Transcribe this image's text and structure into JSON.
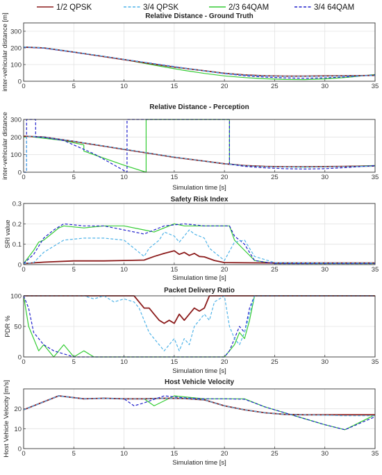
{
  "legend": {
    "items": [
      {
        "label": "1/2 QPSK",
        "color": "#8B1A1A",
        "dash": "solid"
      },
      {
        "label": "3/4 QPSK",
        "color": "#4FB3E8",
        "dash": "dashed"
      },
      {
        "label": "2/3 64QAM",
        "color": "#33CC33",
        "dash": "solid"
      },
      {
        "label": "3/4 64QAM",
        "color": "#1F1FCC",
        "dash": "dashed"
      }
    ]
  },
  "chart_data": [
    {
      "type": "line",
      "title": "Relative Distance - Ground Truth",
      "xlabel": "",
      "ylabel": "inter-vehicular distance [m]",
      "xlim": [
        0,
        35
      ],
      "ylim": [
        0,
        350
      ],
      "xticks": [
        "0",
        "5",
        "10",
        "15",
        "20",
        "25",
        "30",
        "35"
      ],
      "yticks": [
        "0",
        "100",
        "200",
        "300"
      ],
      "grid": true,
      "series": [
        {
          "name": "1/2 QPSK",
          "x": [
            0,
            2,
            5,
            8,
            10,
            13,
            15,
            18,
            20,
            22,
            24,
            26,
            28,
            30,
            32,
            35
          ],
          "y": [
            205,
            200,
            175,
            148,
            130,
            103,
            85,
            63,
            48,
            38,
            33,
            31,
            31,
            32,
            33,
            35
          ]
        },
        {
          "name": "3/4 QPSK",
          "x": [
            0,
            2,
            5,
            8,
            10,
            13,
            15,
            18,
            20,
            22,
            24,
            26,
            28,
            30,
            32,
            35
          ],
          "y": [
            206,
            201,
            176,
            149,
            131,
            104,
            86,
            63,
            48,
            37,
            32,
            30,
            30,
            31,
            32,
            34
          ]
        },
        {
          "name": "2/3 64QAM",
          "x": [
            0,
            2,
            5,
            8,
            10,
            12,
            14,
            16,
            18,
            20,
            22,
            24,
            26,
            28,
            30,
            32,
            35
          ],
          "y": [
            205,
            200,
            175,
            148,
            130,
            108,
            86,
            65,
            47,
            32,
            22,
            15,
            11,
            10,
            14,
            22,
            40
          ]
        },
        {
          "name": "3/4 64QAM",
          "x": [
            0,
            2,
            5,
            8,
            10,
            13,
            15,
            18,
            20,
            22,
            24,
            26,
            28,
            30,
            32,
            35
          ],
          "y": [
            204,
            199,
            174,
            149,
            131,
            106,
            88,
            62,
            46,
            33,
            25,
            20,
            18,
            20,
            26,
            38
          ]
        }
      ]
    },
    {
      "type": "line",
      "title": "Relative Distance - Perception",
      "xlabel": "Simulation time [s]",
      "ylabel": "inter-vehicular distance",
      "xlim": [
        0,
        35
      ],
      "ylim": [
        0,
        300
      ],
      "xticks": [
        "0",
        "5",
        "10",
        "15",
        "20",
        "25",
        "30",
        "35"
      ],
      "yticks": [
        "0",
        "100",
        "200",
        "300"
      ],
      "grid": true,
      "series": [
        {
          "name": "1/2 QPSK",
          "x": [
            0,
            2,
            5,
            8,
            10,
            13,
            15,
            18,
            20,
            22,
            24,
            26,
            28,
            30,
            32,
            35
          ],
          "y": [
            205,
            200,
            175,
            148,
            130,
            103,
            85,
            63,
            48,
            38,
            33,
            31,
            31,
            32,
            33,
            35
          ]
        },
        {
          "name": "3/4 QPSK",
          "x": [
            0,
            0.3,
            0.3,
            2,
            5,
            8,
            10,
            13,
            15,
            18,
            20,
            22,
            24,
            26,
            28,
            30,
            32,
            35
          ],
          "y": [
            0,
            0,
            205,
            200,
            176,
            149,
            131,
            104,
            86,
            63,
            48,
            37,
            32,
            30,
            30,
            31,
            32,
            34
          ]
        },
        {
          "name": "2/3 64QAM",
          "x": [
            0,
            0.3,
            0.3,
            4,
            6,
            6,
            10,
            12.2,
            12.2,
            20.5,
            20.5,
            22,
            24,
            26,
            28,
            30,
            32,
            35
          ],
          "y": [
            200,
            200,
            205,
            180,
            155,
            120,
            40,
            0,
            300,
            300,
            47,
            38,
            33,
            30,
            29,
            31,
            33,
            38
          ]
        },
        {
          "name": "3/4 64QAM",
          "x": [
            0,
            0.3,
            0.3,
            1.2,
            1.2,
            2,
            4,
            7,
            10.3,
            10.3,
            20.5,
            20.5,
            22,
            24,
            26,
            28,
            30,
            32,
            35
          ],
          "y": [
            0,
            0,
            300,
            300,
            200,
            198,
            180,
            105,
            0,
            300,
            300,
            46,
            33,
            25,
            20,
            18,
            20,
            26,
            38
          ]
        }
      ]
    },
    {
      "type": "line",
      "title": "Safety Risk Index",
      "xlabel": "Simulation time [s]",
      "ylabel": "SRI value",
      "xlim": [
        0,
        35
      ],
      "ylim": [
        0,
        0.3
      ],
      "xticks": [
        "0",
        "5",
        "10",
        "15",
        "20",
        "25",
        "30",
        "35"
      ],
      "yticks": [
        "0",
        "0.1",
        "0.2",
        "0.3"
      ],
      "grid": true,
      "series": [
        {
          "name": "1/2 QPSK",
          "x": [
            0,
            2,
            5,
            8,
            10,
            12,
            13,
            14,
            15,
            15.5,
            16,
            16.5,
            17,
            17.5,
            18,
            19,
            20,
            25,
            35
          ],
          "y": [
            0.005,
            0.012,
            0.018,
            0.018,
            0.02,
            0.022,
            0.04,
            0.055,
            0.068,
            0.05,
            0.06,
            0.045,
            0.055,
            0.04,
            0.038,
            0.02,
            0.01,
            0.008,
            0.008
          ]
        },
        {
          "name": "3/4 QPSK",
          "x": [
            0,
            1,
            2,
            4,
            6,
            8,
            10,
            11,
            12,
            12.5,
            13,
            13.5,
            14,
            15,
            15.5,
            16,
            16.5,
            17,
            18,
            18.5,
            19,
            20,
            21,
            22,
            23,
            25,
            30,
            35
          ],
          "y": [
            0.005,
            0.01,
            0.06,
            0.12,
            0.13,
            0.13,
            0.12,
            0.08,
            0.04,
            0.08,
            0.1,
            0.12,
            0.16,
            0.14,
            0.11,
            0.14,
            0.17,
            0.15,
            0.13,
            0.08,
            0.06,
            0.02,
            0.11,
            0.12,
            0.04,
            0.01,
            0.008,
            0.008
          ]
        },
        {
          "name": "2/3 64QAM",
          "x": [
            0,
            1,
            1.5,
            2,
            3,
            3.5,
            4,
            6,
            8,
            10,
            12,
            13,
            15,
            16,
            18,
            20,
            20.5,
            21,
            22,
            23,
            25,
            35
          ],
          "y": [
            0.005,
            0.07,
            0.11,
            0.12,
            0.16,
            0.18,
            0.19,
            0.18,
            0.19,
            0.19,
            0.17,
            0.16,
            0.2,
            0.19,
            0.19,
            0.19,
            0.19,
            0.12,
            0.07,
            0.02,
            0.005,
            0.005
          ]
        },
        {
          "name": "3/4 64QAM",
          "x": [
            0,
            1,
            2,
            3,
            4,
            6,
            8,
            10,
            12,
            14,
            16,
            18,
            20,
            20.5,
            21,
            22,
            23,
            25,
            35
          ],
          "y": [
            0.005,
            0.05,
            0.13,
            0.17,
            0.2,
            0.19,
            0.19,
            0.17,
            0.15,
            0.19,
            0.2,
            0.19,
            0.19,
            0.19,
            0.14,
            0.1,
            0.02,
            0.005,
            0.005
          ]
        }
      ]
    },
    {
      "type": "line",
      "title": "Packet Delivery Ratio",
      "xlabel": "Simulation time [s]",
      "ylabel": "PDR %",
      "xlim": [
        0,
        35
      ],
      "ylim": [
        0,
        100
      ],
      "xticks": [
        "0",
        "5",
        "10",
        "15",
        "20",
        "25",
        "30",
        "35"
      ],
      "yticks": [
        "0",
        "50",
        "100"
      ],
      "grid": true,
      "series": [
        {
          "name": "1/2 QPSK",
          "x": [
            0,
            11,
            11.5,
            12,
            12.5,
            13,
            13.5,
            14,
            14.5,
            15,
            15.5,
            16,
            16.5,
            17,
            17.5,
            18,
            18.5,
            35
          ],
          "y": [
            100,
            100,
            90,
            80,
            80,
            70,
            60,
            55,
            60,
            55,
            70,
            60,
            70,
            80,
            75,
            80,
            100,
            100
          ]
        },
        {
          "name": "3/4 QPSK",
          "x": [
            0,
            6,
            7,
            8,
            9,
            10,
            11,
            11.5,
            12,
            12.5,
            13,
            13.5,
            14,
            14.5,
            15,
            15.5,
            16,
            16.5,
            17,
            17.5,
            18,
            18.5,
            19,
            20,
            20.5,
            21,
            21.5,
            22,
            22.5,
            23,
            35
          ],
          "y": [
            100,
            100,
            95,
            100,
            90,
            95,
            90,
            80,
            60,
            40,
            30,
            20,
            10,
            20,
            30,
            10,
            30,
            20,
            50,
            60,
            70,
            60,
            90,
            100,
            50,
            30,
            20,
            40,
            70,
            100,
            100
          ]
        },
        {
          "name": "2/3 64QAM",
          "x": [
            0,
            0.5,
            1,
            1.5,
            2,
            3,
            4,
            4.5,
            5,
            6,
            7,
            8,
            18,
            19,
            20,
            21,
            21.5,
            22,
            22.5,
            23,
            35
          ],
          "y": [
            100,
            50,
            30,
            10,
            20,
            0,
            20,
            10,
            0,
            10,
            0,
            0,
            0,
            0,
            0,
            20,
            40,
            30,
            60,
            100,
            100
          ]
        },
        {
          "name": "3/4 64QAM",
          "x": [
            0,
            0.5,
            1,
            2,
            3,
            4,
            5,
            10,
            15,
            20,
            20.5,
            21,
            21.5,
            22,
            22.5,
            23,
            35
          ],
          "y": [
            100,
            80,
            40,
            20,
            10,
            5,
            0,
            0,
            0,
            0,
            10,
            30,
            50,
            40,
            80,
            100,
            100
          ]
        }
      ]
    },
    {
      "type": "line",
      "title": "Host Vehicle Velocity",
      "xlabel": "Simulation time [s]",
      "ylabel": "Host Vehicle Velocity [m/s]",
      "xlim": [
        0,
        35
      ],
      "ylim": [
        0,
        30
      ],
      "xticks": [
        "0",
        "5",
        "10",
        "15",
        "20",
        "25",
        "30",
        "35"
      ],
      "yticks": [
        "0",
        "10",
        "20"
      ],
      "grid": true,
      "series": [
        {
          "name": "1/2 QPSK",
          "x": [
            0,
            3.5,
            6,
            8,
            10,
            12,
            14,
            16,
            18,
            20,
            22,
            24,
            26,
            28,
            30,
            32,
            35
          ],
          "y": [
            19.5,
            26.5,
            25,
            25.3,
            25,
            25,
            25.3,
            25.2,
            24.5,
            21.5,
            19.5,
            18,
            17.2,
            17,
            17,
            17,
            17
          ]
        },
        {
          "name": "3/4 QPSK",
          "x": [
            0,
            3.5,
            6,
            8,
            10,
            12,
            14,
            16,
            18,
            20,
            22,
            24,
            26,
            28,
            30,
            32,
            35
          ],
          "y": [
            19.5,
            26.5,
            25,
            25.3,
            25,
            25,
            25.3,
            25.2,
            24.5,
            21.5,
            19.5,
            18,
            17.2,
            17,
            16.8,
            16.5,
            16.5
          ]
        },
        {
          "name": "2/3 64QAM",
          "x": [
            0,
            3.5,
            6,
            8,
            10,
            12,
            13,
            15,
            18,
            20,
            22,
            24,
            26,
            28,
            30,
            32,
            35
          ],
          "y": [
            19.5,
            26.5,
            25,
            25.3,
            25,
            25,
            21.5,
            26.5,
            25,
            25,
            25,
            21,
            18,
            15,
            12,
            9.5,
            17
          ]
        },
        {
          "name": "3/4 64QAM",
          "x": [
            0,
            3.5,
            6,
            8,
            10,
            11,
            12,
            14,
            16,
            18,
            20,
            22,
            24,
            26,
            28,
            30,
            32,
            35
          ],
          "y": [
            19.5,
            26.5,
            25,
            25.3,
            25,
            21.5,
            23,
            26.5,
            25.5,
            25,
            25,
            24.8,
            21,
            18,
            15,
            12,
            9.5,
            16
          ]
        }
      ]
    }
  ]
}
